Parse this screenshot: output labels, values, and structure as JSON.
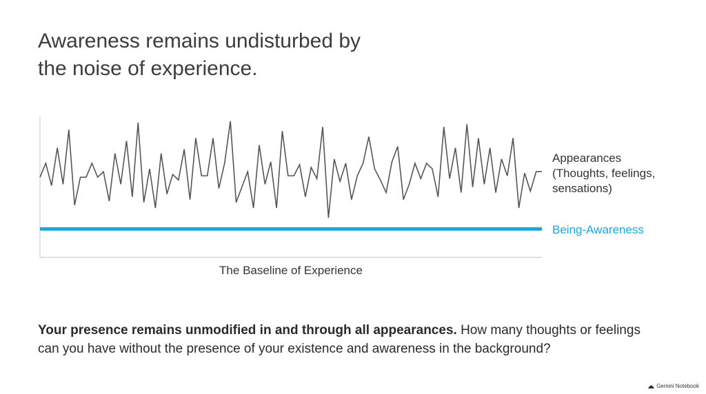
{
  "title": "Awareness remains undisturbed by the noise of experience.",
  "chart_data": {
    "type": "line",
    "x_label": "The Baseline of Experience",
    "ylim": [
      0,
      100
    ],
    "series": [
      {
        "name": "Appearances (Thoughts, feelings, sensations)",
        "color": "#555555",
        "values": [
          57,
          67,
          51,
          78,
          52,
          91,
          37,
          57,
          57,
          67,
          57,
          61,
          40,
          74,
          52,
          83,
          43,
          96,
          39,
          63,
          35,
          74,
          45,
          59,
          55,
          77,
          41,
          85,
          58,
          58,
          85,
          49,
          67,
          97,
          39,
          50,
          61,
          35,
          80,
          52,
          68,
          35,
          90,
          58,
          58,
          66,
          43,
          64,
          56,
          93,
          28,
          70,
          54,
          67,
          41,
          58,
          67,
          86,
          63,
          55,
          46,
          68,
          79,
          41,
          52,
          67,
          56,
          67,
          63,
          43,
          93,
          56,
          78,
          46,
          95,
          50,
          85,
          52,
          78,
          46,
          70,
          58,
          85,
          35,
          60,
          47,
          61,
          61
        ]
      },
      {
        "name": "Being-Awareness",
        "color": "#1ba6d6",
        "values": [
          20,
          20
        ]
      }
    ]
  },
  "body_bold": "Your presence remains unmodified in and through all appearances.",
  "body": "How many thoughts or feelings can you have without the presence of your existence and awareness in the background?",
  "footer": "Gemini Notebook"
}
